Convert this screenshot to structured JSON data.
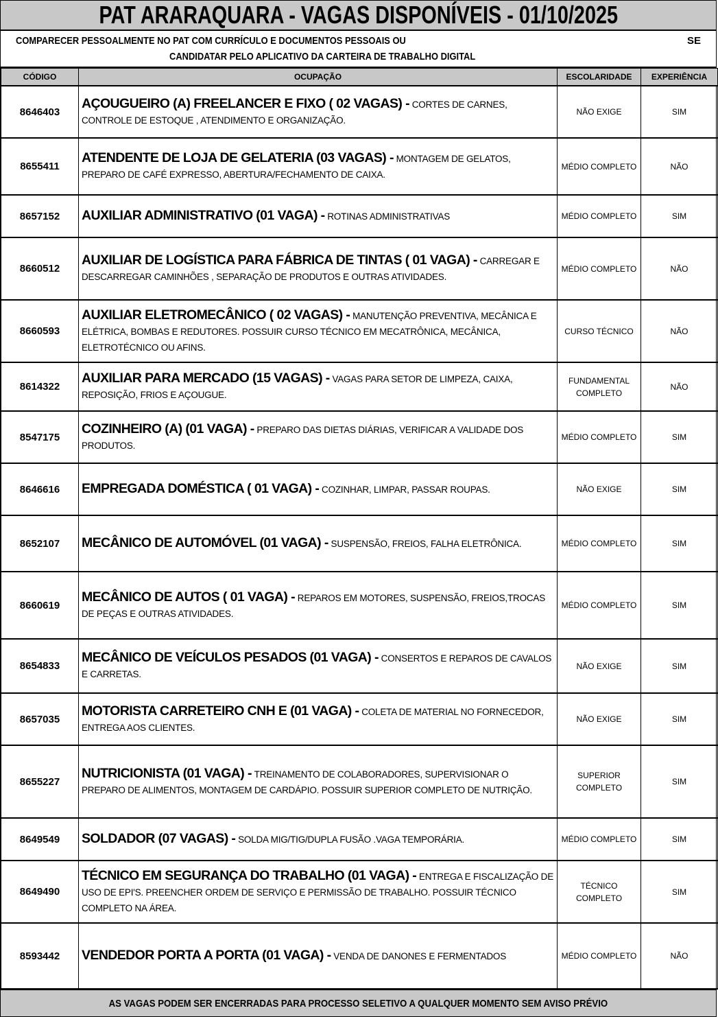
{
  "title": "PAT ARARAQUARA - VAGAS DISPONÍVEIS - 01/10/2025",
  "notice": {
    "line1": "COMPARECER PESSOALMENTE NO PAT COM CURRÍCULO E DOCUMENTOS PESSOAIS OU",
    "se": "SE",
    "line2": "CANDIDATAR PELO APLICATIVO DA CARTEIRA DE TRABALHO DIGITAL"
  },
  "columns": [
    "CÓDIGO",
    "OCUPAÇÃO",
    "ESCOLARIDADE",
    "EXPERIÊNCIA"
  ],
  "rows": [
    {
      "code": "8646403",
      "title": "AÇOUGUEIRO (A) FREELANCER E FIXO ( 02 VAGAS) -",
      "desc": "CORTES DE CARNES, CONTROLE DE ESTOQUE , ATENDIMENTO E ORGANIZAÇÃO.",
      "esc": "NÃO EXIGE",
      "exp": "SIM"
    },
    {
      "code": "8655411",
      "title": "ATENDENTE DE LOJA DE GELATERIA (03 VAGAS) -",
      "desc": "MONTAGEM DE GELATOS, PREPARO DE CAFÉ EXPRESSO, ABERTURA/FECHAMENTO DE CAIXA.",
      "esc": "MÉDIO COMPLETO",
      "exp": "NÃO"
    },
    {
      "code": "8657152",
      "title": "AUXILIAR ADMINISTRATIVO (01 VAGA) -",
      "desc": "ROTINAS ADMINISTRATIVAS",
      "esc": "MÉDIO COMPLETO",
      "exp": "SIM"
    },
    {
      "code": "8660512",
      "title": "AUXILIAR DE LOGÍSTICA PARA FÁBRICA DE TINTAS ( 01 VAGA) -",
      "desc": "CARREGAR E DESCARREGAR CAMINHÕES , SEPARAÇÃO DE PRODUTOS E OUTRAS ATIVIDADES.",
      "esc": "MÉDIO COMPLETO",
      "exp": "NÃO"
    },
    {
      "code": "8660593",
      "title": "AUXILIAR ELETROMECÂNICO ( 02 VAGAS) -",
      "desc": "MANUTENÇÃO PREVENTIVA, MECÂNICA E ELÉTRICA, BOMBAS E REDUTORES. POSSUIR CURSO TÉCNICO EM MECATRÔNICA, MECÂNICA, ELETROTÉCNICO OU AFINS.",
      "esc": "CURSO TÉCNICO",
      "exp": "NÃO"
    },
    {
      "code": "8614322",
      "title": "AUXILIAR PARA MERCADO (15 VAGAS) -",
      "desc": "VAGAS PARA SETOR DE LIMPEZA, CAIXA, REPOSIÇÃO, FRIOS E AÇOUGUE.",
      "esc": "FUNDAMENTAL COMPLETO",
      "exp": "NÃO"
    },
    {
      "code": "8547175",
      "title": "COZINHEIRO (A) (01 VAGA) -",
      "desc": "PREPARO DAS DIETAS DIÁRIAS, VERIFICAR A VALIDADE DOS PRODUTOS.",
      "esc": "MÉDIO COMPLETO",
      "exp": "SIM"
    },
    {
      "code": "8646616",
      "title": "EMPREGADA DOMÉSTICA ( 01 VAGA) -",
      "desc": "COZINHAR, LIMPAR, PASSAR ROUPAS.",
      "esc": "NÃO EXIGE",
      "exp": "SIM"
    },
    {
      "code": "8652107",
      "title": "MECÂNICO DE AUTOMÓVEL (01 VAGA) -",
      "desc": "SUSPENSÃO, FREIOS, FALHA ELETRÔNICA.",
      "esc": "MÉDIO COMPLETO",
      "exp": "SIM"
    },
    {
      "code": "8660619",
      "title": "MECÂNICO DE AUTOS ( 01 VAGA) -",
      "desc": "REPAROS EM MOTORES, SUSPENSÃO, FREIOS,TROCAS DE PEÇAS E OUTRAS ATIVIDADES.",
      "esc": "MÉDIO COMPLETO",
      "exp": "SIM"
    },
    {
      "code": "8654833",
      "title": "MECÂNICO DE VEÍCULOS PESADOS (01 VAGA) -",
      "desc": "CONSERTOS E REPAROS DE CAVALOS E CARRETAS.",
      "esc": "NÃO EXIGE",
      "exp": "SIM"
    },
    {
      "code": "8657035",
      "title": "MOTORISTA CARRETEIRO CNH E (01 VAGA) -",
      "desc": "COLETA DE MATERIAL NO FORNECEDOR, ENTREGA AOS CLIENTES.",
      "esc": "NÃO EXIGE",
      "exp": "SIM"
    },
    {
      "code": "8655227",
      "title": "NUTRICIONISTA (01 VAGA) -",
      "desc": "TREINAMENTO DE COLABORADORES, SUPERVISIONAR O PREPARO DE ALIMENTOS, MONTAGEM DE CARDÁPIO. POSSUIR SUPERIOR COMPLETO DE NUTRIÇÃO.",
      "esc": "SUPERIOR COMPLETO",
      "exp": "SIM"
    },
    {
      "code": "8649549",
      "title": "SOLDADOR (07 VAGAS) -",
      "desc": "SOLDA MIG/TIG/DUPLA FUSÃO .VAGA TEMPORÁRIA.",
      "esc": "MÉDIO COMPLETO",
      "exp": "SIM"
    },
    {
      "code": "8649490",
      "title": "TÉCNICO EM SEGURANÇA DO TRABALHO (01 VAGA) -",
      "desc": "ENTREGA E FISCALIZAÇÃO DE USO DE EPI'S. PREENCHER ORDEM DE SERVIÇO E PERMISSÃO DE TRABALHO. POSSUIR TÉCNICO COMPLETO NA ÁREA.",
      "esc": "TÉCNICO COMPLETO",
      "exp": "SIM"
    },
    {
      "code": "8593442",
      "title": "VENDEDOR PORTA A PORTA (01 VAGA) -",
      "desc": "VENDA DE DANONES E FERMENTADOS",
      "esc": "MÉDIO COMPLETO",
      "exp": "NÃO"
    }
  ],
  "footer": "AS VAGAS PODEM SER ENCERRADAS PARA PROCESSO SELETIVO A QUALQUER MOMENTO SEM AVISO PRÉVIO",
  "colors": {
    "header_bg": "#c8c8c8",
    "border": "#000000"
  }
}
